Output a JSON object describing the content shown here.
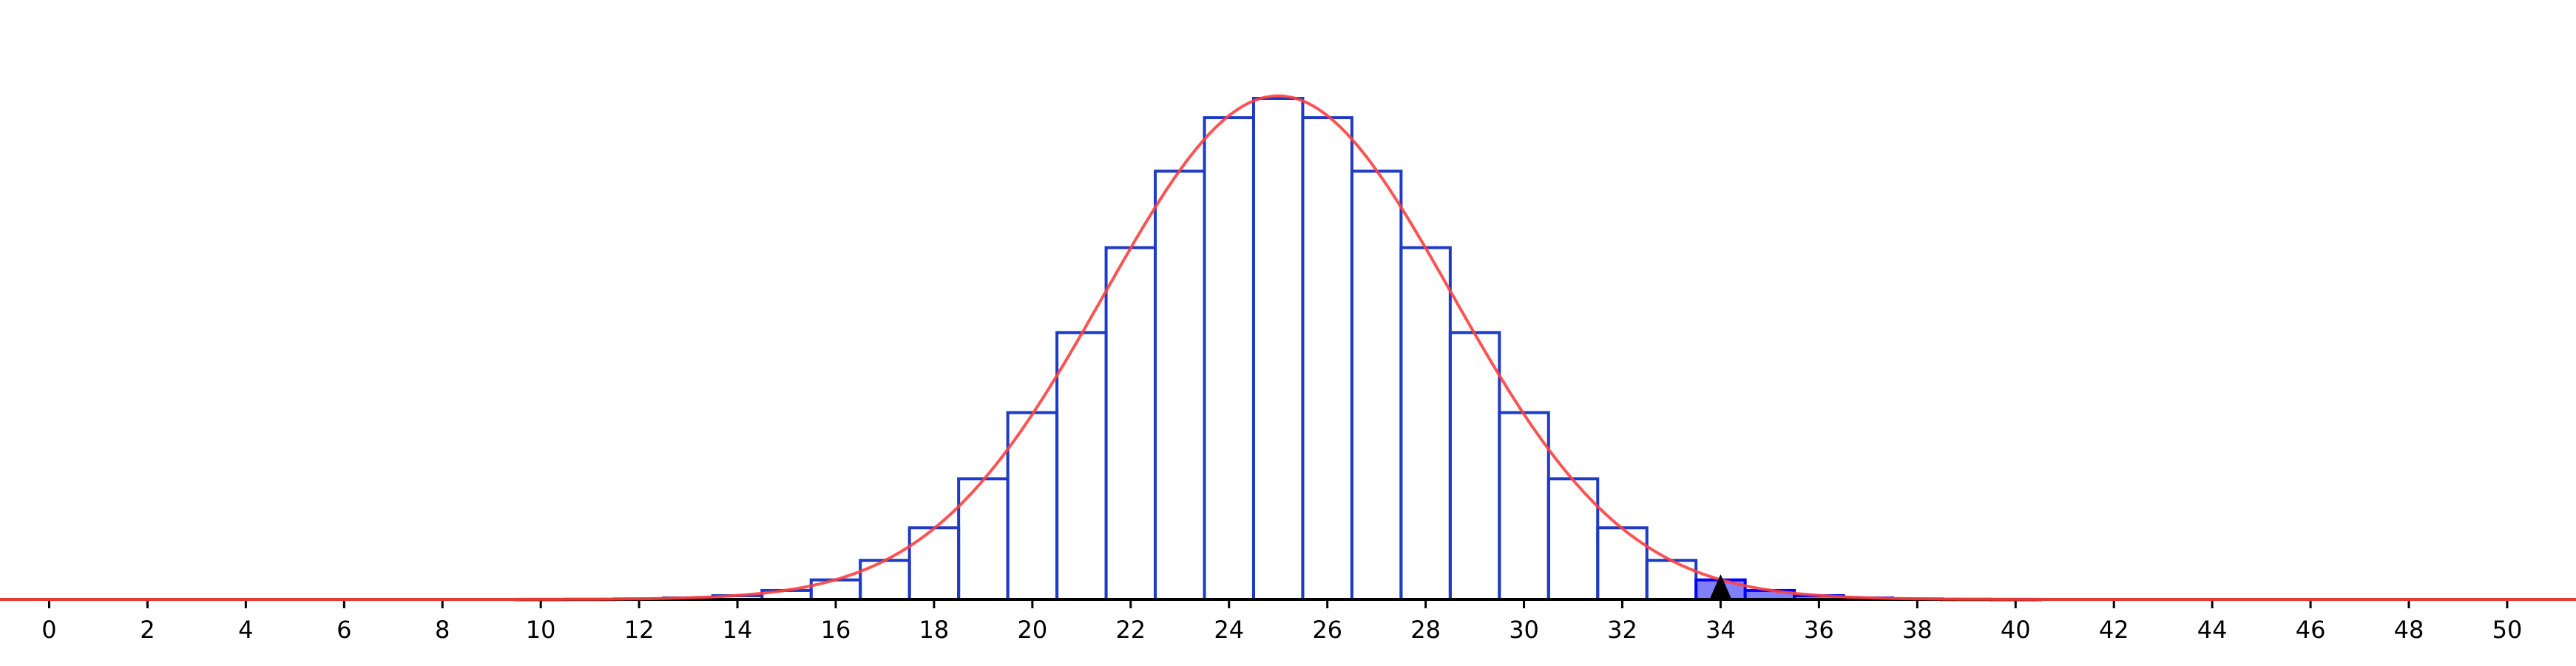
{
  "chart_data": {
    "type": "bar",
    "title": "",
    "xlabel": "",
    "ylabel": "",
    "distribution": "binomial",
    "n": 50,
    "p": 0.5,
    "x": [
      0,
      1,
      2,
      3,
      4,
      5,
      6,
      7,
      8,
      9,
      10,
      11,
      12,
      13,
      14,
      15,
      16,
      17,
      18,
      19,
      20,
      21,
      22,
      23,
      24,
      25,
      26,
      27,
      28,
      29,
      30,
      31,
      32,
      33,
      34,
      35,
      36,
      37,
      38,
      39,
      40,
      41,
      42,
      43,
      44,
      45,
      46,
      47,
      48,
      49,
      50
    ],
    "values": [
      0,
      0,
      0,
      0,
      0,
      0,
      0,
      0,
      0,
      0,
      1e-05,
      3e-05,
      0.00011,
      0.00032,
      0.00083,
      0.002,
      0.00437,
      0.00875,
      0.01604,
      0.02701,
      0.04186,
      0.0598,
      0.07882,
      0.09596,
      0.10795,
      0.11227,
      0.10795,
      0.09596,
      0.07882,
      0.0598,
      0.04186,
      0.02701,
      0.01604,
      0.00875,
      0.00437,
      0.002,
      0.00083,
      0.00032,
      0.00011,
      3e-05,
      1e-05,
      0,
      0,
      0,
      0,
      0,
      0,
      0,
      0,
      0,
      0
    ],
    "highlight_from": 34,
    "marker_at": 34,
    "normal_overlay": {
      "mean": 25,
      "sd": 3.5355
    },
    "xlim": [
      -1,
      51.4
    ],
    "ylim": [
      0,
      0.125
    ],
    "xticks": [
      "0",
      "2",
      "4",
      "6",
      "8",
      "10",
      "12",
      "14",
      "16",
      "18",
      "20",
      "22",
      "24",
      "26",
      "28",
      "30",
      "32",
      "34",
      "36",
      "38",
      "40",
      "42",
      "44",
      "46",
      "48",
      "50"
    ],
    "grid": false,
    "colors": {
      "bar_stroke": "#1f3ac4",
      "highlight_fill": "#8080ff",
      "highlight_stroke": "#0000ff",
      "curve": "#ff4040",
      "axis": "#000000"
    }
  }
}
